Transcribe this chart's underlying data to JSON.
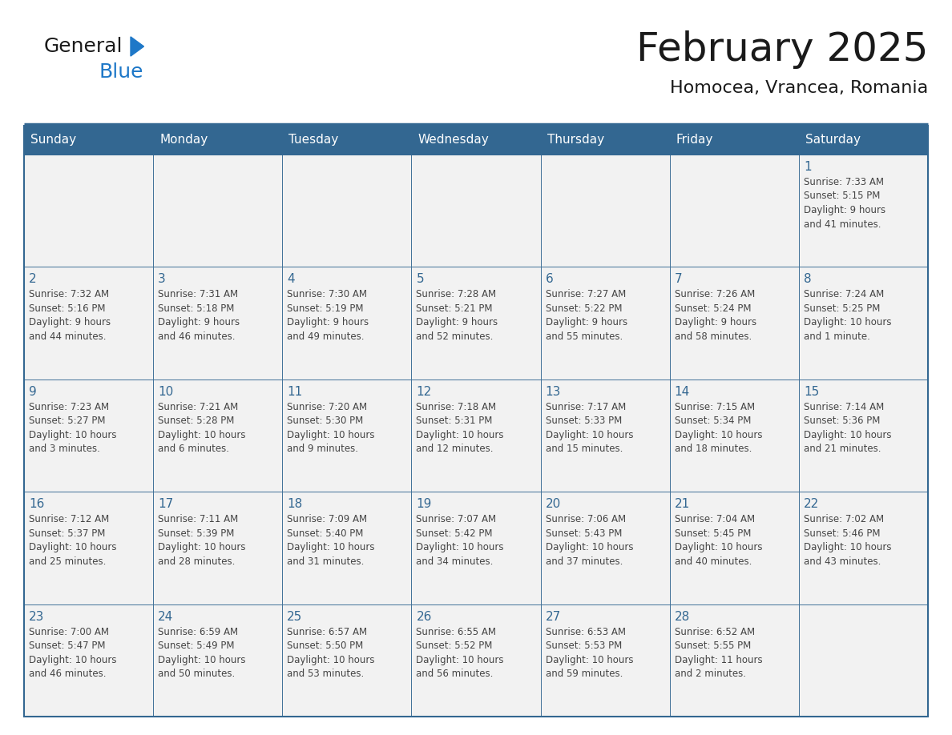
{
  "title": "February 2025",
  "subtitle": "Homocea, Vrancea, Romania",
  "days_of_week": [
    "Sunday",
    "Monday",
    "Tuesday",
    "Wednesday",
    "Thursday",
    "Friday",
    "Saturday"
  ],
  "header_bg": "#336791",
  "header_text": "#FFFFFF",
  "cell_bg": "#F2F2F2",
  "border_color": "#336791",
  "day_num_color": "#336791",
  "text_color": "#444444",
  "title_color": "#1a1a1a",
  "logo_text_color": "#1a1a1a",
  "logo_blue_color": "#1E78C8",
  "weeks": [
    [
      {
        "day": null,
        "info": null
      },
      {
        "day": null,
        "info": null
      },
      {
        "day": null,
        "info": null
      },
      {
        "day": null,
        "info": null
      },
      {
        "day": null,
        "info": null
      },
      {
        "day": null,
        "info": null
      },
      {
        "day": 1,
        "info": "Sunrise: 7:33 AM\nSunset: 5:15 PM\nDaylight: 9 hours\nand 41 minutes."
      }
    ],
    [
      {
        "day": 2,
        "info": "Sunrise: 7:32 AM\nSunset: 5:16 PM\nDaylight: 9 hours\nand 44 minutes."
      },
      {
        "day": 3,
        "info": "Sunrise: 7:31 AM\nSunset: 5:18 PM\nDaylight: 9 hours\nand 46 minutes."
      },
      {
        "day": 4,
        "info": "Sunrise: 7:30 AM\nSunset: 5:19 PM\nDaylight: 9 hours\nand 49 minutes."
      },
      {
        "day": 5,
        "info": "Sunrise: 7:28 AM\nSunset: 5:21 PM\nDaylight: 9 hours\nand 52 minutes."
      },
      {
        "day": 6,
        "info": "Sunrise: 7:27 AM\nSunset: 5:22 PM\nDaylight: 9 hours\nand 55 minutes."
      },
      {
        "day": 7,
        "info": "Sunrise: 7:26 AM\nSunset: 5:24 PM\nDaylight: 9 hours\nand 58 minutes."
      },
      {
        "day": 8,
        "info": "Sunrise: 7:24 AM\nSunset: 5:25 PM\nDaylight: 10 hours\nand 1 minute."
      }
    ],
    [
      {
        "day": 9,
        "info": "Sunrise: 7:23 AM\nSunset: 5:27 PM\nDaylight: 10 hours\nand 3 minutes."
      },
      {
        "day": 10,
        "info": "Sunrise: 7:21 AM\nSunset: 5:28 PM\nDaylight: 10 hours\nand 6 minutes."
      },
      {
        "day": 11,
        "info": "Sunrise: 7:20 AM\nSunset: 5:30 PM\nDaylight: 10 hours\nand 9 minutes."
      },
      {
        "day": 12,
        "info": "Sunrise: 7:18 AM\nSunset: 5:31 PM\nDaylight: 10 hours\nand 12 minutes."
      },
      {
        "day": 13,
        "info": "Sunrise: 7:17 AM\nSunset: 5:33 PM\nDaylight: 10 hours\nand 15 minutes."
      },
      {
        "day": 14,
        "info": "Sunrise: 7:15 AM\nSunset: 5:34 PM\nDaylight: 10 hours\nand 18 minutes."
      },
      {
        "day": 15,
        "info": "Sunrise: 7:14 AM\nSunset: 5:36 PM\nDaylight: 10 hours\nand 21 minutes."
      }
    ],
    [
      {
        "day": 16,
        "info": "Sunrise: 7:12 AM\nSunset: 5:37 PM\nDaylight: 10 hours\nand 25 minutes."
      },
      {
        "day": 17,
        "info": "Sunrise: 7:11 AM\nSunset: 5:39 PM\nDaylight: 10 hours\nand 28 minutes."
      },
      {
        "day": 18,
        "info": "Sunrise: 7:09 AM\nSunset: 5:40 PM\nDaylight: 10 hours\nand 31 minutes."
      },
      {
        "day": 19,
        "info": "Sunrise: 7:07 AM\nSunset: 5:42 PM\nDaylight: 10 hours\nand 34 minutes."
      },
      {
        "day": 20,
        "info": "Sunrise: 7:06 AM\nSunset: 5:43 PM\nDaylight: 10 hours\nand 37 minutes."
      },
      {
        "day": 21,
        "info": "Sunrise: 7:04 AM\nSunset: 5:45 PM\nDaylight: 10 hours\nand 40 minutes."
      },
      {
        "day": 22,
        "info": "Sunrise: 7:02 AM\nSunset: 5:46 PM\nDaylight: 10 hours\nand 43 minutes."
      }
    ],
    [
      {
        "day": 23,
        "info": "Sunrise: 7:00 AM\nSunset: 5:47 PM\nDaylight: 10 hours\nand 46 minutes."
      },
      {
        "day": 24,
        "info": "Sunrise: 6:59 AM\nSunset: 5:49 PM\nDaylight: 10 hours\nand 50 minutes."
      },
      {
        "day": 25,
        "info": "Sunrise: 6:57 AM\nSunset: 5:50 PM\nDaylight: 10 hours\nand 53 minutes."
      },
      {
        "day": 26,
        "info": "Sunrise: 6:55 AM\nSunset: 5:52 PM\nDaylight: 10 hours\nand 56 minutes."
      },
      {
        "day": 27,
        "info": "Sunrise: 6:53 AM\nSunset: 5:53 PM\nDaylight: 10 hours\nand 59 minutes."
      },
      {
        "day": 28,
        "info": "Sunrise: 6:52 AM\nSunset: 5:55 PM\nDaylight: 11 hours\nand 2 minutes."
      },
      {
        "day": null,
        "info": null
      }
    ]
  ]
}
